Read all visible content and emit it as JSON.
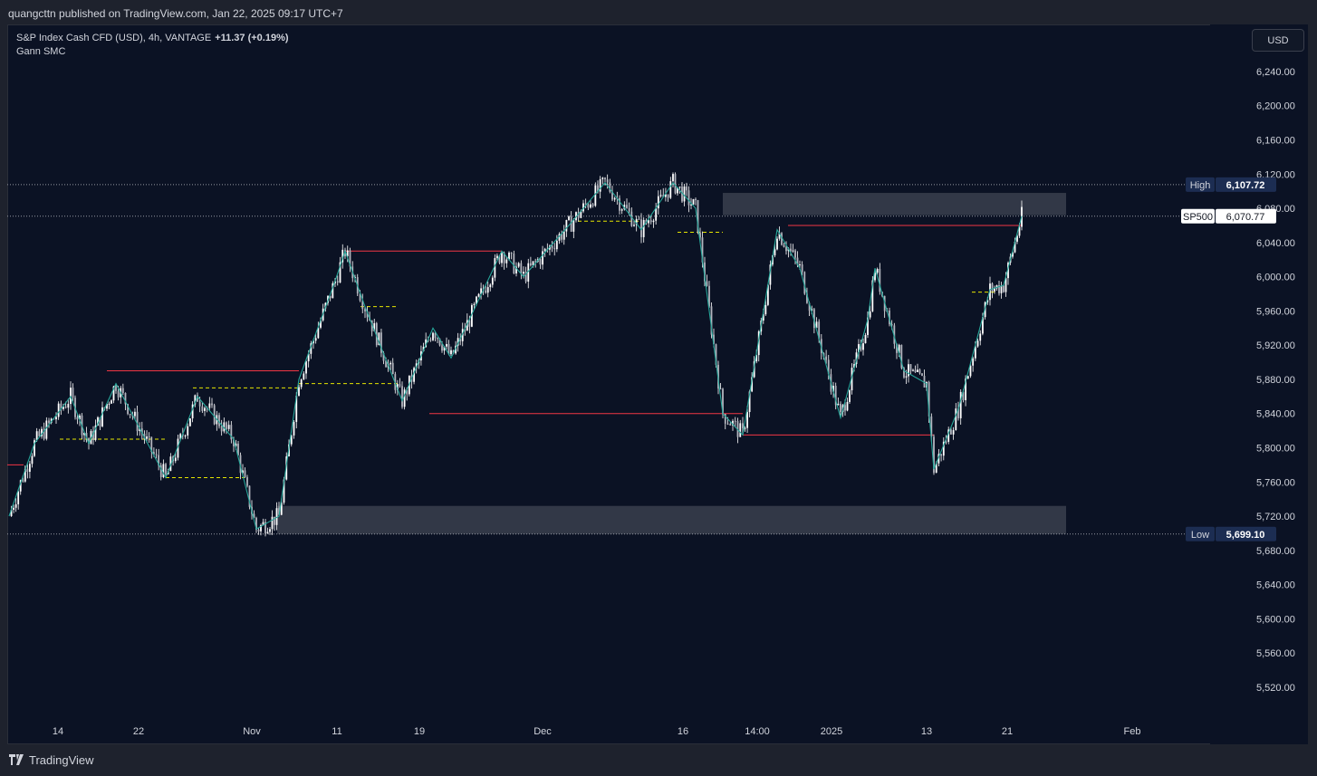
{
  "publisher_line": "quangcttn published on TradingView.com, Jan 22, 2025 09:17 UTC+7",
  "legend": {
    "symbol": "S&P Index Cash CFD (USD), 4h, VANTAGE",
    "change": "+11.37 (+0.19%)",
    "indicator": "Gann SMC"
  },
  "currency_button": "USD",
  "footer_brand": "TradingView",
  "colors": {
    "background": "#0b1224",
    "candle": "#ffffff",
    "swing_line": "#26a69a",
    "structure_line": "#f23645",
    "minor_level": "#e5e500",
    "zone": "#ffffff"
  },
  "chart_data": {
    "type": "candlestick",
    "symbol": "SP500",
    "timeframe": "4h",
    "ylim": [
      5485,
      6295
    ],
    "y_ticks": [
      "6,240.00",
      "6,200.00",
      "6,160.00",
      "6,120.00",
      "6,080.00",
      "6,040.00",
      "6,000.00",
      "5,960.00",
      "5,920.00",
      "5,880.00",
      "5,840.00",
      "5,800.00",
      "5,760.00",
      "5,720.00",
      "5,680.00",
      "5,640.00",
      "5,600.00",
      "5,560.00",
      "5,520.00"
    ],
    "x_ticks": [
      "14",
      "22",
      "Nov",
      "11",
      "19",
      "Dec",
      "16",
      "14:00",
      "2025",
      "13",
      "21",
      "Feb"
    ],
    "price_labels": [
      {
        "label": "High",
        "value": "6,107.72",
        "price": 6107.72
      },
      {
        "label": "SP500",
        "value": "6,070.77",
        "price": 6070.77
      },
      {
        "label": "Low",
        "value": "5,699.10",
        "price": 5699.1
      }
    ],
    "close_path": [
      [
        "14",
        5720
      ],
      [
        "14",
        5805
      ],
      [
        "22",
        5860
      ],
      [
        "22",
        5805
      ],
      [
        "22",
        5875
      ],
      [
        "22",
        5765
      ],
      [
        "22",
        5860
      ],
      [
        "Nov",
        5810
      ],
      [
        "Nov",
        5705
      ],
      [
        "Nov",
        5720
      ],
      [
        "Nov",
        5880
      ],
      [
        "11",
        5995
      ],
      [
        "11",
        6030
      ],
      [
        "11",
        5965
      ],
      [
        "19",
        5855
      ],
      [
        "19",
        5940
      ],
      [
        "19",
        5905
      ],
      [
        "Dec",
        6030
      ],
      [
        "Dec",
        6000
      ],
      [
        "Dec",
        6060
      ],
      [
        "Dec",
        6110
      ],
      [
        "16",
        6055
      ],
      [
        "16",
        6110
      ],
      [
        "16",
        6080
      ],
      [
        "16",
        5840
      ],
      [
        "14:00",
        5815
      ],
      [
        "14:00",
        6055
      ],
      [
        "14:00",
        6010
      ],
      [
        "2025",
        5835
      ],
      [
        "2025",
        5950
      ],
      [
        "2025",
        6010
      ],
      [
        "2025",
        5890
      ],
      [
        "13",
        5875
      ],
      [
        "13",
        5775
      ],
      [
        "13",
        5845
      ],
      [
        "13",
        5985
      ],
      [
        "21",
        5990
      ],
      [
        "21",
        6070.77
      ]
    ],
    "structure_lines": [
      {
        "price": 5890,
        "from": "22",
        "to": "Nov"
      },
      {
        "price": 6030,
        "from": "11",
        "to": "Dec"
      },
      {
        "price": 5840,
        "from": "19",
        "to": "16"
      },
      {
        "price": 5815,
        "from": "14:00",
        "to": "13"
      },
      {
        "price": 6060,
        "from": "14:00",
        "to": "21"
      },
      {
        "price": 5780,
        "from": "14",
        "to": "14"
      }
    ],
    "zones": [
      {
        "from": 6072,
        "to": 6098
      },
      {
        "from": 5699.1,
        "to": 5732
      }
    ],
    "grid": false
  }
}
